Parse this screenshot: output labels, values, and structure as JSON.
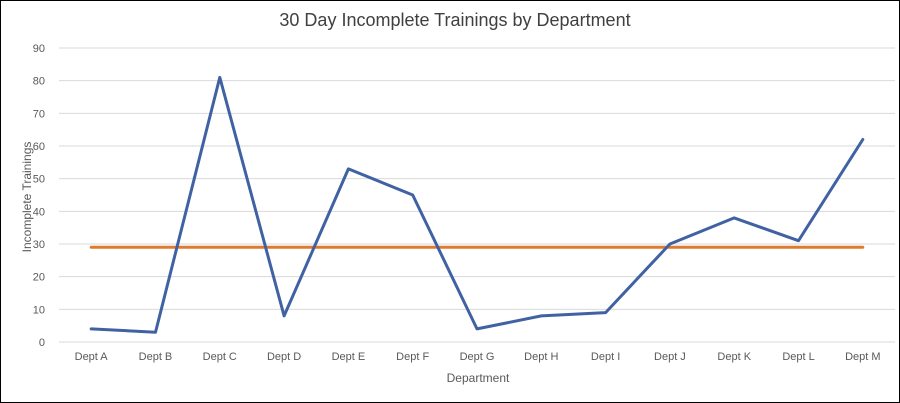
{
  "chart_data": {
    "type": "line",
    "title": "30 Day Incomplete Trainings by Department",
    "xlabel": "Department",
    "ylabel": "Incomplete Trainings",
    "categories": [
      "Dept A",
      "Dept B",
      "Dept C",
      "Dept D",
      "Dept E",
      "Dept F",
      "Dept G",
      "Dept H",
      "Dept I",
      "Dept J",
      "Dept K",
      "Dept L",
      "Dept M"
    ],
    "series": [
      {
        "values": [
          4,
          3,
          81,
          8,
          53,
          45,
          4,
          8,
          9,
          30,
          38,
          31,
          62
        ],
        "color": "#4062a3"
      },
      {
        "values": [
          29,
          29,
          29,
          29,
          29,
          29,
          29,
          29,
          29,
          29,
          29,
          29,
          29
        ],
        "color": "#e07a2e"
      }
    ],
    "ylim": [
      0,
      90
    ],
    "yticks": [
      0,
      10,
      20,
      30,
      40,
      50,
      60,
      70,
      80,
      90
    ],
    "grid": true,
    "gridColor": "#d9d9d9",
    "legend": "none"
  }
}
